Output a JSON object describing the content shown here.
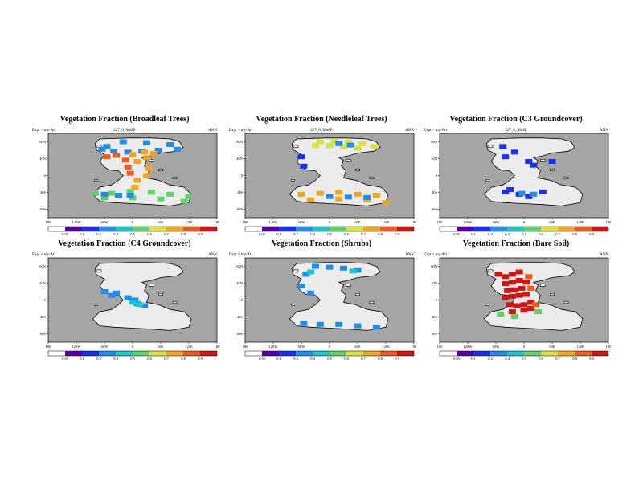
{
  "chart_data": [
    {
      "type": "heatmap",
      "title": "Vegetation Fraction (Broadleaf Trees)",
      "subtitle": "227_0_MaSP",
      "left_label": "Expt = tny/Atl",
      "right_label": "ANN",
      "x_ticks": [
        "180",
        "120W",
        "60W",
        "0",
        "60E",
        "120E",
        "180"
      ],
      "y_ticks": [
        "60N",
        "40N",
        "0",
        "40S",
        "60S"
      ],
      "colorbar_ticks": [
        "0.05",
        "0.1",
        "0.2",
        "0.4",
        "0.5",
        "0.6",
        "0.7",
        "0.8",
        "0.9"
      ],
      "lon_range": [
        -180,
        180
      ],
      "lat_range": [
        -90,
        90
      ],
      "fields": [
        {
          "fraction": 0.3,
          "points": [
            [
              -55,
              62
            ],
            [
              -20,
              72
            ],
            [
              30,
              70
            ],
            [
              80,
              66
            ],
            [
              95,
              56
            ],
            [
              55,
              54
            ],
            [
              20,
              52
            ],
            [
              -10,
              50
            ],
            [
              -40,
              52
            ],
            [
              -65,
              56
            ]
          ]
        },
        {
          "fraction": 0.75,
          "points": [
            [
              0,
              45
            ],
            [
              25,
              50
            ],
            [
              45,
              47
            ],
            [
              30,
              38
            ],
            [
              10,
              30
            ],
            [
              35,
              15
            ],
            [
              30,
              0
            ],
            [
              10,
              -10
            ],
            [
              5,
              -25
            ]
          ]
        },
        {
          "fraction": 0.8,
          "points": [
            [
              -55,
              40
            ],
            [
              -35,
              43
            ],
            [
              -15,
              33
            ],
            [
              -10,
              18
            ],
            [
              -5,
              5
            ]
          ]
        },
        {
          "fraction": 0.55,
          "points": [
            [
              -80,
              -38
            ],
            [
              -45,
              -38
            ],
            [
              -5,
              -34
            ],
            [
              40,
              -36
            ],
            [
              80,
              -40
            ],
            [
              120,
              -45
            ],
            [
              -60,
              -48
            ],
            [
              0,
              -48
            ],
            [
              60,
              -50
            ],
            [
              110,
              -55
            ]
          ]
        },
        {
          "fraction": 0.2,
          "points": [
            [
              -60,
              -40
            ],
            [
              -30,
              -42
            ],
            [
              -5,
              -42
            ]
          ]
        }
      ]
    },
    {
      "type": "heatmap",
      "title": "Vegetation Fraction (Needleleaf Trees)",
      "subtitle": "227_0_MaSP",
      "left_label": "Expt = tny/Atl",
      "right_label": "ANN",
      "x_ticks": [
        "180",
        "120W",
        "60W",
        "0",
        "60E",
        "120E",
        "180"
      ],
      "y_ticks": [
        "60N",
        "40N",
        "0",
        "40S",
        "60S"
      ],
      "colorbar_ticks": [
        "0.05",
        "0.1",
        "0.2",
        "0.4",
        "0.5",
        "0.6",
        "0.7",
        "0.8",
        "0.9"
      ],
      "lon_range": [
        -180,
        180
      ],
      "lat_range": [
        -90,
        90
      ],
      "fields": [
        {
          "fraction": 0.6,
          "points": [
            [
              -20,
              72
            ],
            [
              10,
              74
            ],
            [
              40,
              72
            ],
            [
              70,
              68
            ],
            [
              95,
              62
            ],
            [
              -30,
              64
            ],
            [
              0,
              64
            ],
            [
              30,
              62
            ],
            [
              60,
              58
            ]
          ]
        },
        {
          "fraction": 0.25,
          "points": [
            [
              20,
              68
            ],
            [
              45,
              65
            ]
          ]
        },
        {
          "fraction": 0.7,
          "points": [
            [
              -60,
              -40
            ],
            [
              -20,
              -38
            ],
            [
              20,
              -36
            ],
            [
              60,
              -40
            ],
            [
              100,
              -42
            ],
            [
              -40,
              -52
            ],
            [
              20,
              -50
            ],
            [
              80,
              -52
            ],
            [
              120,
              -58
            ]
          ]
        },
        {
          "fraction": 0.35,
          "points": [
            [
              0,
              -45
            ],
            [
              40,
              -46
            ],
            [
              80,
              -47
            ]
          ]
        },
        {
          "fraction": 0.15,
          "points": [
            [
              -60,
              40
            ],
            [
              -55,
              20
            ]
          ]
        }
      ]
    },
    {
      "type": "heatmap",
      "title": "Vegetation Fraction (C3 Groundcover)",
      "subtitle": "227_0_MaSP",
      "left_label": "Expt = tny/Atl",
      "right_label": "ANN",
      "x_ticks": [
        "180",
        "120W",
        "60W",
        "0",
        "60E",
        "120E",
        "180"
      ],
      "y_ticks": [
        "60N",
        "40N",
        "0",
        "40S",
        "60S"
      ],
      "colorbar_ticks": [
        "0.05",
        "0.1",
        "0.2",
        "0.4",
        "0.5",
        "0.6",
        "0.7",
        "0.8",
        "0.9"
      ],
      "lon_range": [
        -180,
        180
      ],
      "lat_range": [
        -90,
        90
      ],
      "fields": [
        {
          "fraction": 0.15,
          "points": [
            [
              -45,
              62
            ],
            [
              -20,
              50
            ],
            [
              -40,
              40
            ],
            [
              10,
              30
            ],
            [
              20,
              22
            ],
            [
              -40,
              -35
            ],
            [
              -10,
              -40
            ],
            [
              10,
              -45
            ],
            [
              40,
              -35
            ],
            [
              -30,
              -30
            ],
            [
              60,
              30
            ]
          ]
        },
        {
          "fraction": 0.25,
          "points": [
            [
              -5,
              -38
            ],
            [
              20,
              -40
            ]
          ]
        }
      ]
    },
    {
      "type": "heatmap",
      "title": "Vegetation Fraction (C4 Groundcover)",
      "subtitle": "",
      "left_label": "Expt = tny/Atl",
      "right_label": "ANN",
      "x_ticks": [
        "180",
        "120W",
        "60W",
        "0",
        "60E",
        "120E",
        "180"
      ],
      "y_ticks": [
        "60N",
        "40N",
        "0",
        "40S",
        "60S"
      ],
      "colorbar_ticks": [
        "0.05",
        "0.1",
        "0.2",
        "0.4",
        "0.5",
        "0.6",
        "0.7",
        "0.8",
        "0.9"
      ],
      "lon_range": [
        -180,
        180
      ],
      "lat_range": [
        -90,
        90
      ],
      "fields": [
        {
          "fraction": 0.2,
          "points": [
            [
              -60,
              18
            ],
            [
              -45,
              10
            ],
            [
              -10,
              5
            ],
            [
              5,
              0
            ],
            [
              10,
              -8
            ],
            [
              25,
              -12
            ],
            [
              -35,
              15
            ]
          ]
        },
        {
          "fraction": 0.4,
          "points": [
            [
              0,
              -5
            ],
            [
              15,
              -10
            ]
          ]
        }
      ]
    },
    {
      "type": "heatmap",
      "title": "Vegetation Fraction (Shrubs)",
      "subtitle": "",
      "left_label": "Expt = tny/Atl",
      "right_label": "ANN",
      "x_ticks": [
        "180",
        "120W",
        "60W",
        "0",
        "60E",
        "120E",
        "180"
      ],
      "y_ticks": [
        "60N",
        "40N",
        "0",
        "40S",
        "60S"
      ],
      "colorbar_ticks": [
        "0.05",
        "0.1",
        "0.2",
        "0.4",
        "0.5",
        "0.6",
        "0.7",
        "0.8",
        "0.9"
      ],
      "lon_range": [
        -180,
        180
      ],
      "lat_range": [
        -90,
        90
      ],
      "fields": [
        {
          "fraction": 0.2,
          "points": [
            [
              -30,
              72
            ],
            [
              0,
              70
            ],
            [
              30,
              68
            ],
            [
              60,
              64
            ],
            [
              -50,
              55
            ],
            [
              -60,
              30
            ],
            [
              -40,
              15
            ],
            [
              -55,
              -50
            ],
            [
              -20,
              -52
            ],
            [
              20,
              -52
            ],
            [
              60,
              -55
            ],
            [
              100,
              -58
            ]
          ]
        },
        {
          "fraction": 0.45,
          "points": [
            [
              -40,
              60
            ],
            [
              50,
              62
            ]
          ]
        }
      ]
    },
    {
      "type": "heatmap",
      "title": "Vegetation Fraction (Bare Soil)",
      "subtitle": "",
      "left_label": "Expt = tny/Atl",
      "right_label": "ANN",
      "x_ticks": [
        "180",
        "120W",
        "60W",
        "0",
        "60E",
        "120E",
        "180"
      ],
      "y_ticks": [
        "60N",
        "40N",
        "0",
        "40S",
        "60S"
      ],
      "colorbar_ticks": [
        "0.05",
        "0.1",
        "0.2",
        "0.4",
        "0.5",
        "0.6",
        "0.7",
        "0.8",
        "0.9"
      ],
      "lon_range": [
        -180,
        180
      ],
      "lat_range": [
        -90,
        90
      ],
      "fields": [
        {
          "fraction": 0.92,
          "points": [
            [
              -55,
              55
            ],
            [
              -40,
              50
            ],
            [
              -25,
              55
            ],
            [
              -10,
              60
            ],
            [
              -40,
              35
            ],
            [
              -25,
              38
            ],
            [
              -10,
              42
            ],
            [
              5,
              38
            ],
            [
              -35,
              20
            ],
            [
              -20,
              22
            ],
            [
              -5,
              25
            ],
            [
              -40,
              5
            ],
            [
              -25,
              8
            ],
            [
              -10,
              10
            ],
            [
              5,
              12
            ],
            [
              -30,
              -10
            ],
            [
              -15,
              -12
            ],
            [
              0,
              -10
            ],
            [
              15,
              -5
            ],
            [
              -25,
              -25
            ],
            [
              0,
              -22
            ],
            [
              15,
              -18
            ]
          ]
        },
        {
          "fraction": 0.8,
          "points": [
            [
              10,
              50
            ],
            [
              15,
              25
            ],
            [
              25,
              -10
            ]
          ]
        },
        {
          "fraction": 0.5,
          "points": [
            [
              -50,
              -30
            ],
            [
              -20,
              -35
            ],
            [
              30,
              -25
            ]
          ]
        }
      ]
    }
  ]
}
